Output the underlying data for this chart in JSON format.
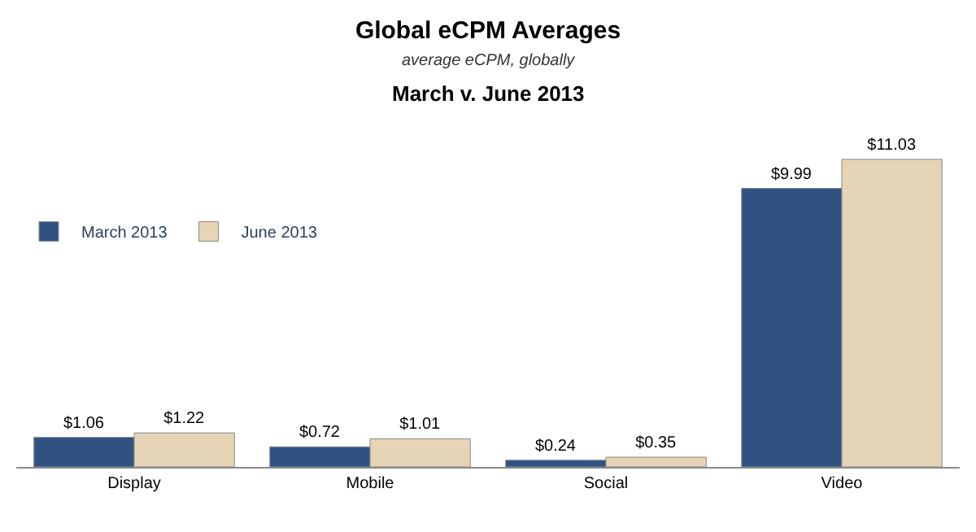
{
  "chart_data": {
    "type": "bar",
    "title": "Global eCPM Averages",
    "subtitle": "average eCPM, globally",
    "annotations": [
      "March v. June 2013"
    ],
    "categories": [
      "Display",
      "Mobile",
      "Social",
      "Video"
    ],
    "series": [
      {
        "name": "March 2013",
        "color": "#2f5283",
        "values": [
          1.06,
          0.72,
          0.24,
          9.99
        ],
        "value_labels": [
          "$1.06",
          "$0.72",
          "$0.24",
          "$9.99"
        ]
      },
      {
        "name": "June 2013",
        "color": "#e6d4b6",
        "values": [
          1.22,
          1.01,
          0.35,
          11.03
        ],
        "value_labels": [
          "$1.22",
          "$1.01",
          "$0.35",
          "$11.03"
        ]
      }
    ],
    "legend": "top left"
  }
}
